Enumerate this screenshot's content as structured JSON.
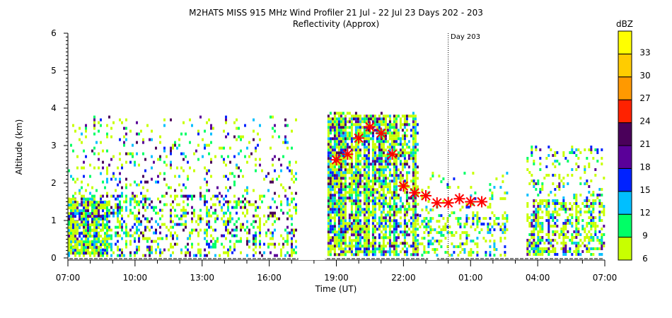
{
  "chart_data": {
    "type": "heatmap",
    "title": "M2HATS MISS 915 MHz Wind Profiler  21 Jul - 22 Jul 23 Days 202 - 203",
    "subtitle": "Reflectivity (Approx)",
    "xlabel": "Time (UT)",
    "ylabel": "Altitude (km)",
    "x_unit": "hours since 07:00 UT 21 Jul",
    "xlim": [
      0,
      24
    ],
    "ylim": [
      0,
      6
    ],
    "x_ticks": [
      {
        "value": 0,
        "label": "07:00"
      },
      {
        "value": 3,
        "label": "10:00"
      },
      {
        "value": 6,
        "label": "13:00"
      },
      {
        "value": 9,
        "label": "16:00"
      },
      {
        "value": 12,
        "label": "19:00"
      },
      {
        "value": 15,
        "label": "22:00"
      },
      {
        "value": 18,
        "label": "01:00"
      },
      {
        "value": 21,
        "label": "04:00"
      },
      {
        "value": 24,
        "label": "07:00"
      }
    ],
    "y_ticks": [
      0,
      1,
      2,
      3,
      4,
      5,
      6
    ],
    "annotation": {
      "label": "Day 203",
      "x": 17
    },
    "colorbar": {
      "label": "dBZ",
      "levels": [
        {
          "label": "6",
          "color": "#c8ff00"
        },
        {
          "label": "9",
          "color": "#00ff66"
        },
        {
          "label": "12",
          "color": "#00bfff"
        },
        {
          "label": "15",
          "color": "#0022ff"
        },
        {
          "label": "18",
          "color": "#5a0099"
        },
        {
          "label": "21",
          "color": "#4a005a"
        },
        {
          "label": "24",
          "color": "#ff2200"
        },
        {
          "label": "27",
          "color": "#ff9900"
        },
        {
          "label": "30",
          "color": "#ffcc00"
        },
        {
          "label": "33",
          "color": "#ffff00"
        }
      ]
    },
    "echo_regions": [
      {
        "t": [
          0,
          10.2
        ],
        "alt": [
          0.1,
          3.8
        ],
        "dense_top": 1.7,
        "max_level": 5,
        "density": 0.35
      },
      {
        "t": [
          0,
          1.8
        ],
        "alt": [
          0.1,
          1.6
        ],
        "dense_top": 1.6,
        "max_level": 5,
        "density": 0.9
      },
      {
        "t": [
          11.6,
          15.6
        ],
        "alt": [
          0.1,
          3.9
        ],
        "dense_top": 3.9,
        "max_level": 5,
        "density": 0.75
      },
      {
        "t": [
          15.6,
          19.6
        ],
        "alt": [
          0.1,
          2.3
        ],
        "dense_top": 1.2,
        "max_level": 3,
        "density": 0.35
      },
      {
        "t": [
          20.5,
          24
        ],
        "alt": [
          0.1,
          3.0
        ],
        "dense_top": 1.6,
        "max_level": 4,
        "density": 0.6
      }
    ],
    "markers": {
      "symbol": "red-asterisk",
      "color": "#ff0000",
      "points": [
        {
          "x": 12.0,
          "y": 2.62
        },
        {
          "x": 12.5,
          "y": 2.77
        },
        {
          "x": 13.0,
          "y": 3.2
        },
        {
          "x": 13.5,
          "y": 3.5
        },
        {
          "x": 14.0,
          "y": 3.33
        },
        {
          "x": 14.5,
          "y": 2.77
        },
        {
          "x": 15.0,
          "y": 1.92
        },
        {
          "x": 15.5,
          "y": 1.74
        },
        {
          "x": 16.0,
          "y": 1.66
        },
        {
          "x": 16.5,
          "y": 1.47
        },
        {
          "x": 17.0,
          "y": 1.47
        },
        {
          "x": 17.5,
          "y": 1.58
        },
        {
          "x": 18.0,
          "y": 1.5
        },
        {
          "x": 18.5,
          "y": 1.5
        }
      ]
    },
    "data_gaps": [
      [
        10.3,
        11.5
      ],
      [
        16.1,
        16.5
      ]
    ]
  }
}
